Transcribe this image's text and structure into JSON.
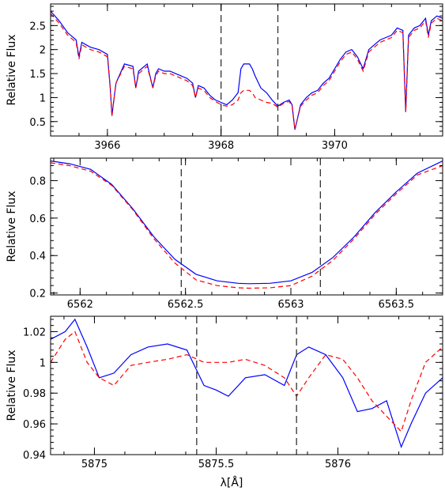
{
  "figure": {
    "xlabel": "λ[Å]"
  },
  "chart_data": [
    {
      "type": "line",
      "xlabel": "",
      "ylabel": "Relative Flux",
      "xlim": [
        3965.0,
        3971.9
      ],
      "ylim": [
        0.2,
        2.95
      ],
      "xticks": [
        3966,
        3968,
        3970
      ],
      "yticks": [
        0.5,
        1,
        1.5,
        2,
        2.5
      ],
      "vlines": [
        3968.0,
        3969.0
      ],
      "series": [
        {
          "color": "#0000ff",
          "style": "solid",
          "x": [
            3965.0,
            3965.15,
            3965.3,
            3965.45,
            3965.5,
            3965.55,
            3965.7,
            3965.85,
            3966.0,
            3966.05,
            3966.08,
            3966.15,
            3966.3,
            3966.45,
            3966.5,
            3966.55,
            3966.7,
            3966.8,
            3966.85,
            3966.9,
            3967.0,
            3967.1,
            3967.2,
            3967.3,
            3967.4,
            3967.5,
            3967.55,
            3967.6,
            3967.7,
            3967.8,
            3967.9,
            3968.0,
            3968.1,
            3968.2,
            3968.3,
            3968.35,
            3968.4,
            3968.5,
            3968.55,
            3968.6,
            3968.7,
            3968.8,
            3968.9,
            3969.0,
            3969.1,
            3969.2,
            3969.25,
            3969.3,
            3969.4,
            3969.5,
            3969.6,
            3969.7,
            3969.8,
            3969.9,
            3970.0,
            3970.1,
            3970.2,
            3970.3,
            3970.4,
            3970.5,
            3970.6,
            3970.7,
            3970.8,
            3970.9,
            3971.0,
            3971.1,
            3971.2,
            3971.25,
            3971.3,
            3971.4,
            3971.5,
            3971.6,
            3971.65,
            3971.7,
            3971.8,
            3971.9
          ],
          "y": [
            2.8,
            2.6,
            2.35,
            2.2,
            1.85,
            2.15,
            2.05,
            2.0,
            1.9,
            1.2,
            0.62,
            1.3,
            1.7,
            1.65,
            1.2,
            1.55,
            1.7,
            1.2,
            1.5,
            1.6,
            1.55,
            1.55,
            1.5,
            1.45,
            1.4,
            1.3,
            1.0,
            1.25,
            1.2,
            1.05,
            0.95,
            0.9,
            0.85,
            0.95,
            1.1,
            1.6,
            1.7,
            1.7,
            1.6,
            1.45,
            1.2,
            1.1,
            0.95,
            0.82,
            0.9,
            0.95,
            0.85,
            0.33,
            0.85,
            1.0,
            1.1,
            1.15,
            1.3,
            1.4,
            1.6,
            1.8,
            1.95,
            2.0,
            1.85,
            1.6,
            2.0,
            2.1,
            2.2,
            2.25,
            2.3,
            2.45,
            2.4,
            0.7,
            2.3,
            2.45,
            2.5,
            2.65,
            2.3,
            2.6,
            2.7,
            2.65
          ]
        },
        {
          "color": "#ff0000",
          "style": "dashed",
          "x": [
            3965.0,
            3965.15,
            3965.3,
            3965.45,
            3965.5,
            3965.55,
            3965.7,
            3965.85,
            3966.0,
            3966.05,
            3966.08,
            3966.15,
            3966.3,
            3966.45,
            3966.5,
            3966.55,
            3966.7,
            3966.8,
            3966.85,
            3966.9,
            3967.0,
            3967.1,
            3967.2,
            3967.3,
            3967.4,
            3967.5,
            3967.55,
            3967.6,
            3967.7,
            3967.8,
            3967.9,
            3968.0,
            3968.1,
            3968.2,
            3968.3,
            3968.35,
            3968.4,
            3968.5,
            3968.55,
            3968.6,
            3968.7,
            3968.8,
            3968.9,
            3969.0,
            3969.1,
            3969.2,
            3969.25,
            3969.3,
            3969.4,
            3969.5,
            3969.6,
            3969.7,
            3969.8,
            3969.9,
            3970.0,
            3970.1,
            3970.2,
            3970.3,
            3970.4,
            3970.5,
            3970.6,
            3970.7,
            3970.8,
            3970.9,
            3971.0,
            3971.1,
            3971.2,
            3971.25,
            3971.3,
            3971.4,
            3971.5,
            3971.6,
            3971.65,
            3971.7,
            3971.8,
            3971.9
          ],
          "y": [
            2.75,
            2.55,
            2.3,
            2.15,
            1.8,
            2.1,
            2.0,
            1.95,
            1.85,
            1.2,
            0.62,
            1.3,
            1.65,
            1.6,
            1.2,
            1.5,
            1.65,
            1.2,
            1.45,
            1.55,
            1.5,
            1.5,
            1.45,
            1.4,
            1.35,
            1.25,
            1.0,
            1.2,
            1.15,
            1.0,
            0.92,
            0.85,
            0.82,
            0.85,
            0.95,
            1.1,
            1.15,
            1.15,
            1.1,
            1.0,
            0.95,
            0.9,
            0.88,
            0.8,
            0.88,
            0.92,
            0.82,
            0.33,
            0.82,
            0.95,
            1.05,
            1.1,
            1.25,
            1.35,
            1.55,
            1.75,
            1.9,
            1.95,
            1.8,
            1.55,
            1.95,
            2.05,
            2.15,
            2.2,
            2.25,
            2.4,
            2.35,
            0.7,
            2.25,
            2.4,
            2.45,
            2.6,
            2.25,
            2.55,
            2.65,
            2.6
          ]
        }
      ]
    },
    {
      "type": "line",
      "xlabel": "",
      "ylabel": "Relative Flux",
      "xlim": [
        6561.86,
        6563.72
      ],
      "ylim": [
        0.19,
        0.92
      ],
      "xticks": [
        6562,
        6562.5,
        6563,
        6563.5
      ],
      "yticks": [
        0.2,
        0.4,
        0.6,
        0.8
      ],
      "vlines": [
        6562.48,
        6563.14
      ],
      "series": [
        {
          "color": "#0000ff",
          "style": "solid",
          "x": [
            6561.86,
            6561.95,
            6562.05,
            6562.15,
            6562.25,
            6562.35,
            6562.45,
            6562.55,
            6562.65,
            6562.75,
            6562.8,
            6562.9,
            6563.0,
            6563.1,
            6563.2,
            6563.3,
            6563.4,
            6563.5,
            6563.6,
            6563.72
          ],
          "y": [
            0.905,
            0.89,
            0.86,
            0.78,
            0.65,
            0.5,
            0.38,
            0.3,
            0.265,
            0.252,
            0.25,
            0.252,
            0.265,
            0.31,
            0.39,
            0.5,
            0.63,
            0.74,
            0.84,
            0.905
          ]
        },
        {
          "color": "#ff0000",
          "style": "dashed",
          "x": [
            6561.86,
            6561.95,
            6562.05,
            6562.15,
            6562.25,
            6562.35,
            6562.45,
            6562.55,
            6562.65,
            6562.75,
            6562.8,
            6562.9,
            6563.0,
            6563.1,
            6563.2,
            6563.3,
            6563.4,
            6563.5,
            6563.6,
            6563.72
          ],
          "y": [
            0.895,
            0.88,
            0.85,
            0.775,
            0.645,
            0.49,
            0.36,
            0.27,
            0.24,
            0.228,
            0.226,
            0.228,
            0.24,
            0.29,
            0.375,
            0.49,
            0.62,
            0.73,
            0.83,
            0.88
          ]
        }
      ]
    },
    {
      "type": "line",
      "xlabel": "λ[Å]",
      "ylabel": "Relative Flux",
      "xlim": [
        5874.82,
        5876.43
      ],
      "ylim": [
        0.94,
        1.03
      ],
      "xticks": [
        5875,
        5875.5,
        5876
      ],
      "yticks": [
        0.94,
        0.96,
        0.98,
        1,
        1.02
      ],
      "vlines": [
        5875.42,
        5875.83
      ],
      "series": [
        {
          "color": "#0000ff",
          "style": "solid",
          "x": [
            5874.82,
            5874.88,
            5874.92,
            5874.97,
            5875.02,
            5875.08,
            5875.15,
            5875.22,
            5875.3,
            5875.38,
            5875.45,
            5875.5,
            5875.55,
            5875.62,
            5875.7,
            5875.78,
            5875.83,
            5875.88,
            5875.95,
            5876.02,
            5876.08,
            5876.14,
            5876.2,
            5876.26,
            5876.3,
            5876.36,
            5876.43
          ],
          "y": [
            1.015,
            1.02,
            1.028,
            1.01,
            0.99,
            0.993,
            1.005,
            1.01,
            1.012,
            1.008,
            0.985,
            0.982,
            0.978,
            0.99,
            0.992,
            0.985,
            1.005,
            1.01,
            1.005,
            0.99,
            0.968,
            0.97,
            0.975,
            0.945,
            0.96,
            0.98,
            0.99
          ]
        },
        {
          "color": "#ff0000",
          "style": "dashed",
          "x": [
            5874.82,
            5874.88,
            5874.92,
            5874.97,
            5875.02,
            5875.08,
            5875.15,
            5875.22,
            5875.3,
            5875.38,
            5875.45,
            5875.5,
            5875.55,
            5875.62,
            5875.7,
            5875.78,
            5875.83,
            5875.88,
            5875.95,
            5876.02,
            5876.08,
            5876.14,
            5876.2,
            5876.26,
            5876.3,
            5876.36,
            5876.43
          ],
          "y": [
            1.0,
            1.015,
            1.02,
            1.0,
            0.99,
            0.985,
            0.998,
            1.0,
            1.002,
            1.005,
            1.0,
            1.0,
            1.0,
            1.002,
            0.998,
            0.99,
            0.978,
            0.99,
            1.005,
            1.002,
            0.99,
            0.975,
            0.965,
            0.955,
            0.975,
            1.0,
            1.01
          ]
        }
      ]
    }
  ]
}
